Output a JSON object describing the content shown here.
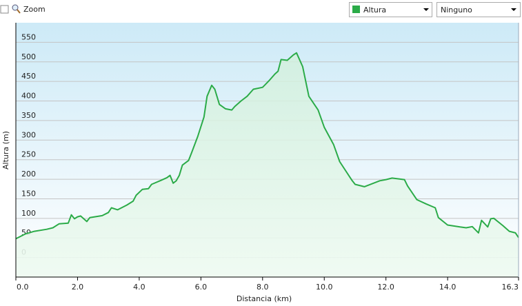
{
  "toolbar": {
    "zoom_label": "Zoom",
    "secondary_select": "Ninguno"
  },
  "chart_data": {
    "type": "area-line",
    "x_label": "Distancia (km)",
    "y_label": "Altura (m)",
    "x": [
      0,
      0.3,
      0.6,
      1.0,
      1.2,
      1.4,
      1.7,
      1.8,
      1.9,
      2.0,
      2.1,
      2.3,
      2.4,
      2.8,
      3.0,
      3.1,
      3.3,
      3.6,
      3.8,
      3.9,
      4.1,
      4.3,
      4.4,
      4.7,
      4.9,
      5.0,
      5.1,
      5.2,
      5.3,
      5.4,
      5.6,
      5.7,
      5.9,
      6.1,
      6.2,
      6.35,
      6.45,
      6.6,
      6.8,
      7.0,
      7.1,
      7.3,
      7.5,
      7.7,
      8.0,
      8.2,
      8.4,
      8.5,
      8.6,
      8.8,
      9.0,
      9.1,
      9.3,
      9.5,
      9.8,
      10.0,
      10.3,
      10.5,
      10.9,
      11.0,
      11.3,
      11.8,
      12.0,
      12.2,
      12.6,
      12.7,
      13.0,
      13.3,
      13.6,
      13.7,
      14.0,
      14.4,
      14.6,
      14.8,
      15.0,
      15.1,
      15.3,
      15.4,
      15.5,
      15.8,
      16.0,
      16.2,
      16.3
    ],
    "series": [
      {
        "name": "Altura",
        "color": "#2bab48",
        "values": [
          48,
          60,
          67,
          72,
          76,
          86,
          88,
          109,
          99,
          104,
          106,
          92,
          102,
          107,
          115,
          127,
          122,
          134,
          144,
          159,
          174,
          176,
          187,
          197,
          204,
          210,
          190,
          196,
          210,
          236,
          248,
          268,
          310,
          359,
          412,
          440,
          430,
          391,
          380,
          377,
          386,
          400,
          412,
          430,
          435,
          451,
          469,
          476,
          506,
          504,
          518,
          523,
          488,
          412,
          377,
          333,
          289,
          245,
          197,
          187,
          181,
          196,
          199,
          203,
          199,
          183,
          148,
          137,
          127,
          102,
          83,
          78,
          76,
          79,
          63,
          95,
          78,
          99,
          100,
          81,
          67,
          63,
          51
        ]
      }
    ],
    "xlim": [
      0,
      16.3
    ],
    "ylim": [
      -50,
      600
    ],
    "xticks": [
      {
        "value": 0,
        "label": "0.0"
      },
      {
        "value": 2,
        "label": "2.0"
      },
      {
        "value": 4,
        "label": "4.0"
      },
      {
        "value": 6,
        "label": "6.0"
      },
      {
        "value": 8,
        "label": "8.0"
      },
      {
        "value": 10,
        "label": "10.0"
      },
      {
        "value": 12,
        "label": "12.0"
      },
      {
        "value": 14,
        "label": "14.0"
      },
      16.3
    ],
    "yticks": [
      0,
      50,
      100,
      150,
      200,
      250,
      300,
      350,
      400,
      450,
      500,
      550
    ],
    "grid": true
  }
}
